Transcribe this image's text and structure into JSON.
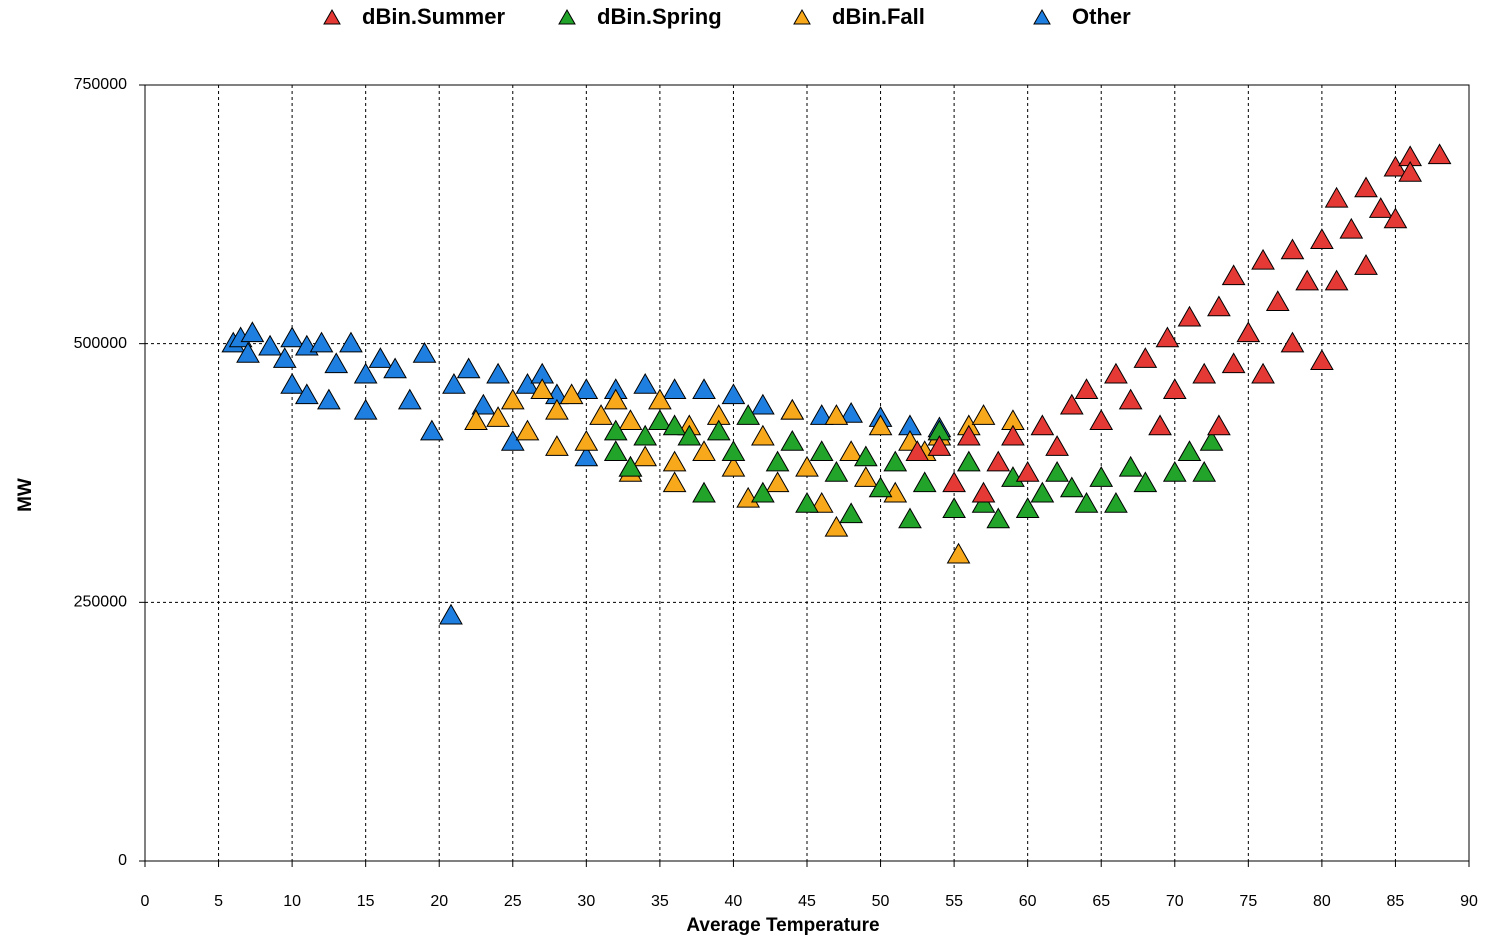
{
  "chart_data": {
    "type": "scatter",
    "x_label": "Average Temperature",
    "y_label": "MW",
    "xlim": [
      0,
      90
    ],
    "xticks": [
      0,
      5,
      10,
      15,
      20,
      25,
      30,
      35,
      40,
      45,
      50,
      55,
      60,
      65,
      70,
      75,
      80,
      85,
      90
    ],
    "ylim": [
      0,
      750000
    ],
    "yticks": [
      0,
      250000,
      500000,
      750000
    ],
    "grid": true,
    "legend": "top",
    "series": [
      {
        "name": "dBin.Summer",
        "color": "#e53935",
        "x": [
          52.5,
          54,
          55,
          56,
          57,
          58,
          59,
          60,
          61,
          62,
          63,
          64,
          65,
          66,
          67,
          68,
          69,
          69.5,
          70,
          71,
          72,
          73,
          73,
          74,
          74,
          75,
          76,
          76,
          77,
          78,
          78,
          79,
          80,
          80,
          81,
          81,
          82,
          83,
          83,
          84,
          85,
          85,
          86,
          86,
          88
        ],
        "values": [
          395000,
          400000,
          365000,
          410000,
          355000,
          385000,
          410000,
          375000,
          420000,
          400000,
          440000,
          455000,
          425000,
          470000,
          445000,
          485000,
          420000,
          505000,
          455000,
          525000,
          470000,
          535000,
          420000,
          565000,
          480000,
          510000,
          580000,
          470000,
          540000,
          590000,
          500000,
          560000,
          600000,
          483000,
          640000,
          560000,
          610000,
          650000,
          575000,
          630000,
          670000,
          620000,
          680000,
          665000,
          682000
        ]
      },
      {
        "name": "dBin.Spring",
        "color": "#22a32a",
        "x": [
          32,
          32,
          33,
          34,
          35,
          36,
          37,
          38,
          39,
          40,
          41,
          42,
          43,
          44,
          45,
          46,
          47,
          48,
          49,
          50,
          51,
          52,
          53,
          54,
          55,
          56,
          57,
          58,
          59,
          60,
          61,
          62,
          63,
          64,
          65,
          66,
          67,
          68,
          70,
          71,
          72,
          72.5
        ],
        "values": [
          415000,
          395000,
          380000,
          410000,
          425000,
          420000,
          410000,
          355000,
          415000,
          395000,
          430000,
          355000,
          385000,
          405000,
          345000,
          395000,
          375000,
          335000,
          390000,
          360000,
          385000,
          330000,
          365000,
          415000,
          340000,
          385000,
          345000,
          330000,
          370000,
          340000,
          355000,
          375000,
          360000,
          345000,
          370000,
          345000,
          380000,
          365000,
          375000,
          395000,
          375000,
          405000
        ]
      },
      {
        "name": "dBin.Fall",
        "color": "#f7a81b",
        "x": [
          22.5,
          24,
          25,
          26,
          27,
          28,
          28,
          29,
          30,
          31,
          32,
          33,
          33,
          34,
          35,
          36,
          36,
          37,
          38,
          39,
          40,
          41,
          42,
          43,
          44,
          45,
          46,
          47,
          47,
          48,
          49,
          50,
          51,
          52,
          53,
          54,
          55.3,
          56,
          57,
          59
        ],
        "values": [
          425000,
          428000,
          445000,
          415000,
          455000,
          400000,
          435000,
          450000,
          405000,
          430000,
          445000,
          375000,
          425000,
          390000,
          445000,
          385000,
          365000,
          420000,
          395000,
          430000,
          380000,
          350000,
          410000,
          365000,
          435000,
          380000,
          345000,
          322000,
          430000,
          395000,
          370000,
          420000,
          355000,
          405000,
          395000,
          410000,
          296000,
          420000,
          430000,
          425000
        ]
      },
      {
        "name": "Other",
        "color": "#1e7fe0",
        "x": [
          6,
          6.5,
          7.3,
          7,
          8.5,
          9.5,
          10,
          10,
          11,
          11,
          12,
          12.5,
          13,
          14,
          15,
          15,
          16,
          17,
          18,
          19,
          19.5,
          20.8,
          21,
          22,
          23,
          24,
          25,
          26,
          27,
          28,
          30,
          30,
          32,
          33,
          34,
          36,
          38,
          40,
          42,
          44,
          46,
          48,
          50,
          52,
          54
        ],
        "values": [
          500000,
          505000,
          510000,
          490000,
          497000,
          485000,
          505000,
          460000,
          450000,
          497000,
          500000,
          445000,
          480000,
          500000,
          470000,
          435000,
          485000,
          475000,
          445000,
          490000,
          415000,
          237000,
          460000,
          475000,
          440000,
          470000,
          405000,
          460000,
          470000,
          450000,
          390000,
          455000,
          455000,
          380000,
          460000,
          455000,
          455000,
          450000,
          440000,
          435000,
          430000,
          432000,
          428000,
          420000,
          418000
        ]
      }
    ]
  }
}
